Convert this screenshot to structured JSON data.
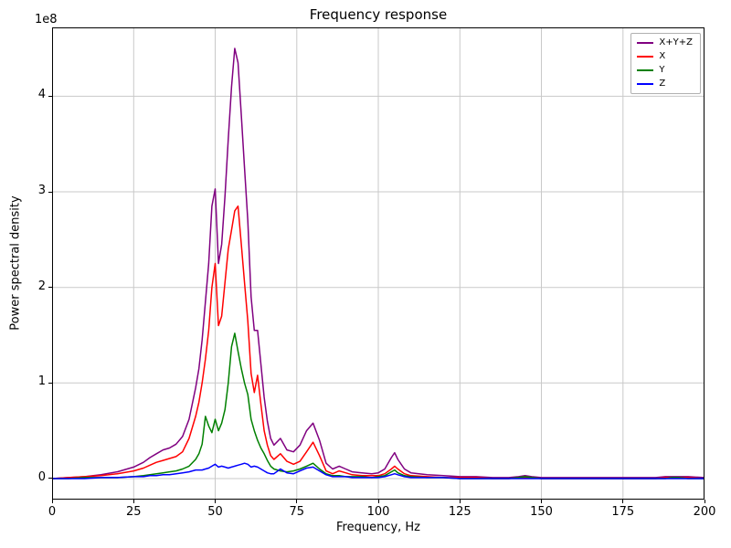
{
  "chart_data": {
    "type": "line",
    "title": "Frequency response",
    "xlabel": "Frequency, Hz",
    "ylabel": "Power spectral density",
    "y_offset_label": "1e8",
    "value_unit": "1e8",
    "xlim": [
      0,
      200
    ],
    "ylim": [
      -0.22,
      4.72
    ],
    "xticks": [
      0,
      25,
      50,
      75,
      100,
      125,
      150,
      175,
      200
    ],
    "yticks": [
      0,
      1,
      2,
      3,
      4
    ],
    "grid": true,
    "grid_color": "#c9c9c9",
    "axis_color": "#000000",
    "legend_position": "upper right",
    "x": [
      0,
      5,
      10,
      15,
      20,
      25,
      28,
      30,
      32,
      34,
      36,
      38,
      40,
      42,
      44,
      45,
      46,
      47,
      48,
      49,
      50,
      51,
      52,
      53,
      54,
      55,
      56,
      57,
      58,
      59,
      60,
      61,
      62,
      63,
      64,
      65,
      66,
      67,
      68,
      70,
      72,
      74,
      76,
      78,
      80,
      82,
      84,
      86,
      88,
      90,
      92,
      95,
      98,
      100,
      102,
      104,
      105,
      106,
      108,
      110,
      115,
      120,
      125,
      130,
      135,
      140,
      143,
      145,
      147,
      150,
      155,
      160,
      165,
      170,
      175,
      180,
      185,
      188,
      190,
      192,
      195,
      200
    ],
    "series": [
      {
        "name": "X+Y+Z",
        "color": "#800080",
        "values": [
          0.0,
          0.01,
          0.02,
          0.04,
          0.07,
          0.12,
          0.17,
          0.22,
          0.26,
          0.3,
          0.32,
          0.36,
          0.44,
          0.62,
          0.95,
          1.15,
          1.45,
          1.85,
          2.25,
          2.85,
          3.03,
          2.25,
          2.45,
          2.95,
          3.55,
          4.1,
          4.5,
          4.35,
          3.8,
          3.25,
          2.7,
          1.9,
          1.55,
          1.55,
          1.2,
          0.85,
          0.6,
          0.42,
          0.35,
          0.42,
          0.3,
          0.28,
          0.35,
          0.5,
          0.58,
          0.4,
          0.16,
          0.1,
          0.13,
          0.1,
          0.07,
          0.06,
          0.05,
          0.06,
          0.1,
          0.22,
          0.27,
          0.2,
          0.1,
          0.06,
          0.04,
          0.03,
          0.02,
          0.02,
          0.01,
          0.01,
          0.02,
          0.03,
          0.02,
          0.01,
          0.01,
          0.01,
          0.01,
          0.01,
          0.01,
          0.01,
          0.01,
          0.02,
          0.02,
          0.02,
          0.02,
          0.01
        ]
      },
      {
        "name": "X",
        "color": "#ff0000",
        "values": [
          0.0,
          0.01,
          0.02,
          0.03,
          0.05,
          0.08,
          0.11,
          0.14,
          0.17,
          0.19,
          0.21,
          0.23,
          0.28,
          0.42,
          0.65,
          0.8,
          1.0,
          1.25,
          1.55,
          2.0,
          2.25,
          1.6,
          1.7,
          2.05,
          2.4,
          2.6,
          2.8,
          2.85,
          2.45,
          2.05,
          1.65,
          1.1,
          0.9,
          1.08,
          0.78,
          0.5,
          0.35,
          0.24,
          0.2,
          0.26,
          0.18,
          0.15,
          0.18,
          0.28,
          0.38,
          0.24,
          0.08,
          0.05,
          0.08,
          0.06,
          0.04,
          0.03,
          0.03,
          0.03,
          0.05,
          0.1,
          0.13,
          0.1,
          0.05,
          0.03,
          0.02,
          0.01,
          0.01,
          0.01,
          0.0,
          0.0,
          0.01,
          0.01,
          0.01,
          0.0,
          0.0,
          0.0,
          0.0,
          0.0,
          0.0,
          0.0,
          0.0,
          0.01,
          0.01,
          0.01,
          0.01,
          0.0
        ]
      },
      {
        "name": "Y",
        "color": "#008000",
        "values": [
          0.0,
          0.0,
          0.01,
          0.01,
          0.01,
          0.02,
          0.03,
          0.04,
          0.05,
          0.06,
          0.07,
          0.08,
          0.1,
          0.13,
          0.2,
          0.26,
          0.36,
          0.65,
          0.55,
          0.48,
          0.62,
          0.5,
          0.58,
          0.72,
          1.0,
          1.38,
          1.52,
          1.33,
          1.15,
          1.0,
          0.88,
          0.62,
          0.5,
          0.4,
          0.32,
          0.26,
          0.19,
          0.13,
          0.1,
          0.08,
          0.07,
          0.08,
          0.1,
          0.13,
          0.16,
          0.1,
          0.05,
          0.03,
          0.03,
          0.02,
          0.02,
          0.02,
          0.01,
          0.02,
          0.03,
          0.07,
          0.09,
          0.06,
          0.03,
          0.02,
          0.01,
          0.01,
          0.0,
          0.0,
          0.0,
          0.0,
          0.01,
          0.02,
          0.01,
          0.0,
          0.0,
          0.0,
          0.0,
          0.0,
          0.0,
          0.0,
          0.0,
          0.0,
          0.01,
          0.01,
          0.0,
          0.0
        ]
      },
      {
        "name": "Z",
        "color": "#0000ff",
        "values": [
          0.0,
          0.0,
          0.0,
          0.01,
          0.01,
          0.02,
          0.02,
          0.03,
          0.03,
          0.04,
          0.04,
          0.05,
          0.06,
          0.07,
          0.09,
          0.09,
          0.09,
          0.1,
          0.11,
          0.13,
          0.15,
          0.12,
          0.13,
          0.12,
          0.11,
          0.12,
          0.13,
          0.14,
          0.15,
          0.16,
          0.15,
          0.12,
          0.13,
          0.12,
          0.1,
          0.08,
          0.06,
          0.05,
          0.05,
          0.1,
          0.06,
          0.05,
          0.08,
          0.11,
          0.12,
          0.08,
          0.04,
          0.02,
          0.02,
          0.02,
          0.01,
          0.01,
          0.01,
          0.01,
          0.02,
          0.04,
          0.05,
          0.04,
          0.02,
          0.01,
          0.01,
          0.01,
          0.0,
          0.0,
          0.0,
          0.0,
          0.0,
          0.0,
          0.0,
          0.0,
          0.0,
          0.0,
          0.0,
          0.0,
          0.0,
          0.0,
          0.0,
          0.0,
          0.0,
          0.0,
          0.0,
          0.0
        ]
      }
    ]
  }
}
